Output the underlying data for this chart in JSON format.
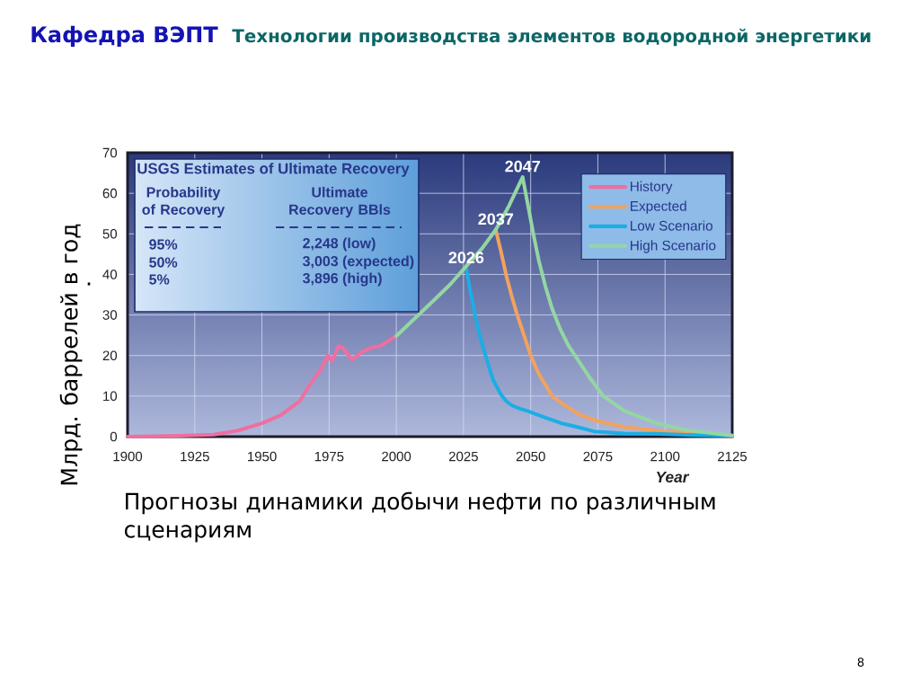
{
  "chart_data": {
    "type": "line",
    "title": "Кафедра ВЭПТ",
    "subtitle": "Технологии производства элементов водородной энергетики",
    "xlabel": "Year",
    "ylabel": "Млрд. баррелей в год",
    "xlim": [
      1900,
      2125
    ],
    "ylim": [
      0,
      70
    ],
    "xticks": [
      1900,
      1925,
      1950,
      1975,
      2000,
      2025,
      2050,
      2075,
      2100,
      2125
    ],
    "yticks": [
      0,
      10,
      20,
      30,
      40,
      50,
      60,
      70
    ],
    "grid": true,
    "legend": "top right",
    "series": [
      {
        "name": "History",
        "color": "#ee6fa0",
        "x": [
          1900,
          1919,
          1932,
          1941,
          1950,
          1957,
          1964,
          1968,
          1972,
          1974.5,
          1976,
          1978.5,
          1980,
          1983.5,
          1987,
          1991,
          1994,
          1998,
          2000
        ],
        "values": [
          0,
          0.2,
          0.5,
          1.5,
          3.3,
          5.3,
          8.7,
          13,
          16.7,
          20,
          18.6,
          22.3,
          22,
          19,
          20.8,
          22,
          22.3,
          24,
          24.8
        ]
      },
      {
        "name": "Expected",
        "color": "#f2a25e",
        "x": [
          2037,
          2039,
          2041,
          2043,
          2045,
          2047,
          2050,
          2053,
          2058,
          2062,
          2068,
          2074,
          2085,
          2100,
          2125
        ],
        "values": [
          51,
          45.5,
          39.5,
          34.5,
          30,
          26,
          20,
          15.5,
          10,
          8,
          5.5,
          4,
          2.4,
          1.3,
          0.3
        ]
      },
      {
        "name": "Low Scenario",
        "color": "#1aaee6",
        "x": [
          2026,
          2027.5,
          2029.3,
          2031,
          2033.2,
          2036,
          2039,
          2041,
          2043,
          2046,
          2049,
          2055.5,
          2062,
          2069,
          2073.5,
          2085,
          2096,
          2110,
          2125
        ],
        "values": [
          41.5,
          36,
          30,
          25,
          20,
          14,
          10.3,
          8.7,
          7.7,
          6.9,
          6.3,
          4.7,
          3.2,
          2.1,
          1.3,
          0.8,
          0.7,
          0.4,
          0.2
        ]
      },
      {
        "name": "High Scenario",
        "color": "#94d6a2",
        "x": [
          2000,
          2013,
          2020,
          2026,
          2032,
          2037,
          2042,
          2047,
          2049,
          2051,
          2053,
          2055.5,
          2058,
          2061,
          2064,
          2067,
          2072,
          2077,
          2085,
          2096,
          2107,
          2125
        ],
        "values": [
          24.8,
          33,
          37.5,
          42,
          46.5,
          51,
          57,
          64,
          57,
          50,
          43.5,
          37,
          31.5,
          26.5,
          22.5,
          19.5,
          14.5,
          10,
          6.3,
          3.5,
          1.7,
          0.3
        ]
      }
    ],
    "annotations": [
      "USGS Estimates of Ultimate Recovery",
      "Probability of Recovery",
      "Ultimate Recovery BBls",
      "95%",
      "50%",
      "5%",
      "2,248 (low)",
      "3,003 (expected)",
      "3,896 (high)",
      {
        "text": "2026",
        "x": 2026,
        "y": 41.5
      },
      {
        "text": "2037",
        "x": 2037,
        "y": 51
      },
      {
        "text": "2047",
        "x": 2047,
        "y": 64
      },
      "Прогнозы динамики добычи нефти по различным сценариям",
      "8",
      "."
    ]
  }
}
